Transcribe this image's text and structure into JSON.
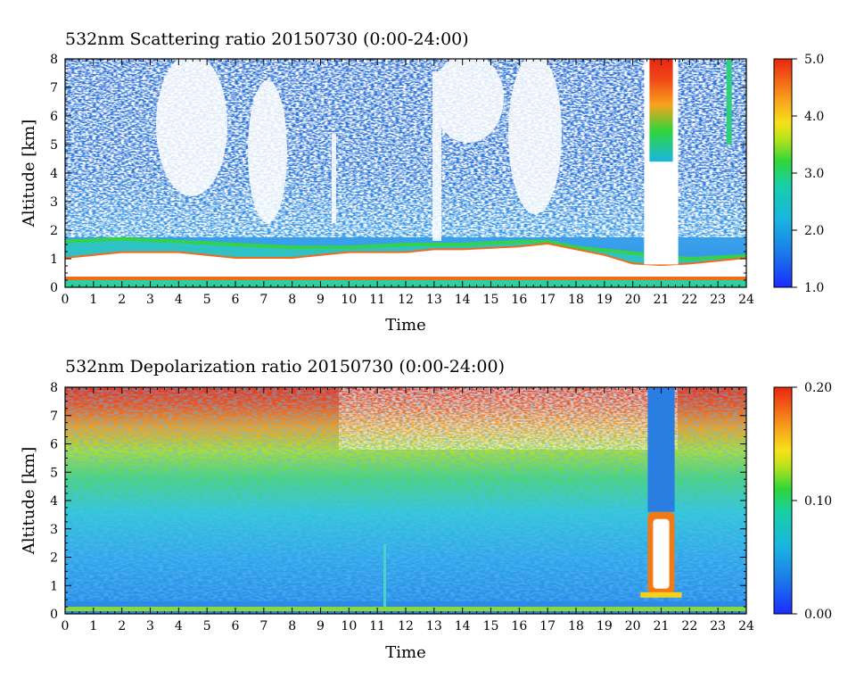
{
  "chart_data": [
    {
      "type": "heatmap",
      "title": "532nm Scattering ratio  20150730 (0:00-24:00)",
      "xlabel": "Time",
      "ylabel": "Altitude [km]",
      "xlim": [
        0,
        24
      ],
      "ylim": [
        0,
        8
      ],
      "xticks": [
        "0",
        "1",
        "2",
        "3",
        "4",
        "5",
        "6",
        "7",
        "8",
        "9",
        "10",
        "11",
        "12",
        "13",
        "14",
        "15",
        "16",
        "17",
        "18",
        "19",
        "20",
        "21",
        "22",
        "23",
        "24"
      ],
      "yticks": [
        "0",
        "1",
        "2",
        "3",
        "4",
        "5",
        "6",
        "7",
        "8"
      ],
      "colorbar": {
        "min": 1.0,
        "max": 5.0,
        "ticks": [
          "1.0",
          "2.0",
          "3.0",
          "4.0",
          "5.0"
        ]
      },
      "features": {
        "cloud_base_km": [
          [
            0,
            1.0
          ],
          [
            2,
            1.2
          ],
          [
            4,
            1.2
          ],
          [
            6,
            1.0
          ],
          [
            8,
            1.0
          ],
          [
            9,
            1.1
          ],
          [
            10,
            1.2
          ],
          [
            12,
            1.2
          ],
          [
            13,
            1.3
          ],
          [
            14,
            1.3
          ],
          [
            16,
            1.4
          ],
          [
            17,
            1.5
          ],
          [
            18,
            1.3
          ],
          [
            19,
            1.1
          ],
          [
            20,
            0.8
          ],
          [
            21,
            0.75
          ],
          [
            22,
            0.8
          ],
          [
            23,
            0.9
          ],
          [
            24,
            1.0
          ]
        ],
        "boundary_layer_top_km": [
          [
            0,
            1.6
          ],
          [
            2,
            1.7
          ],
          [
            4,
            1.6
          ],
          [
            6,
            1.5
          ],
          [
            8,
            1.4
          ],
          [
            10,
            1.4
          ],
          [
            12,
            1.5
          ],
          [
            14,
            1.5
          ],
          [
            16,
            1.6
          ],
          [
            17,
            1.6
          ],
          [
            18,
            1.4
          ],
          [
            20,
            1.2
          ],
          [
            22,
            1.0
          ],
          [
            24,
            1.1
          ]
        ],
        "thick_cloud_x": [
          20.4,
          21.6
        ],
        "thick_cloud_base_km": 0.8
      }
    },
    {
      "type": "heatmap",
      "title": "532nm Depolarization ratio  20150730 (0:00-24:00)",
      "xlabel": "Time",
      "ylabel": "Altitude [km]",
      "xlim": [
        0,
        24
      ],
      "ylim": [
        0,
        8
      ],
      "xticks": [
        "0",
        "1",
        "2",
        "3",
        "4",
        "5",
        "6",
        "7",
        "8",
        "9",
        "10",
        "11",
        "12",
        "13",
        "14",
        "15",
        "16",
        "17",
        "18",
        "19",
        "20",
        "21",
        "22",
        "23",
        "24"
      ],
      "yticks": [
        "0",
        "1",
        "2",
        "3",
        "4",
        "5",
        "6",
        "7",
        "8"
      ],
      "colorbar": {
        "min": 0.0,
        "max": 0.2,
        "ticks": [
          "0.00",
          "0.10",
          "0.20"
        ]
      },
      "features": {
        "thick_cloud_x": [
          20.4,
          21.6
        ],
        "thick_cloud_top_km": 3.6,
        "thick_cloud_base_km": 0.7
      }
    }
  ]
}
